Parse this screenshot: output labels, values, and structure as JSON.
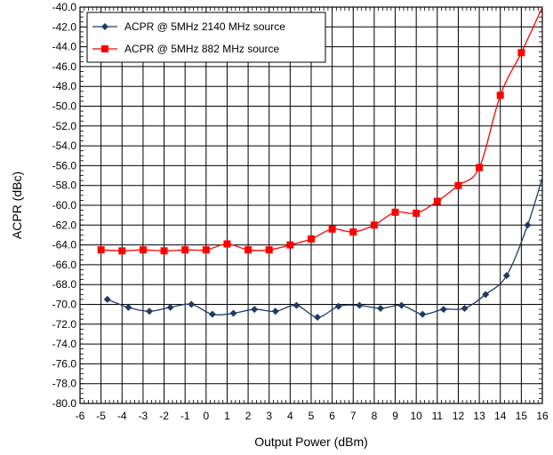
{
  "chart_data": {
    "type": "line",
    "title": "",
    "xlabel": "Output Power (dBm)",
    "ylabel": "ACPR (dBc)",
    "xlim": [
      -6,
      16
    ],
    "ylim": [
      -80,
      -40
    ],
    "x_ticks": [
      -6,
      -5,
      -4,
      -3,
      -2,
      -1,
      0,
      1,
      2,
      3,
      4,
      5,
      6,
      7,
      8,
      9,
      10,
      11,
      12,
      13,
      14,
      15,
      16
    ],
    "y_ticks": [
      -40.0,
      -42.0,
      -44.0,
      -46.0,
      -48.0,
      -50.0,
      -52.0,
      -54.0,
      -56.0,
      -58.0,
      -60.0,
      -62.0,
      -64.0,
      -66.0,
      -68.0,
      -70.0,
      -72.0,
      -74.0,
      -76.0,
      -78.0,
      -80.0
    ],
    "grid": true,
    "legend_position": "top-left",
    "series": [
      {
        "name": "ACPR @ 5MHz 2140 MHz source",
        "color": "#1f3a66",
        "marker": "diamond",
        "x": [
          -4.7,
          -3.7,
          -2.7,
          -1.7,
          -0.7,
          0.3,
          1.3,
          2.3,
          3.3,
          4.3,
          5.3,
          6.3,
          7.3,
          8.3,
          9.3,
          10.3,
          11.3,
          12.3,
          13.3,
          14.3,
          15.3
        ],
        "y": [
          -69.5,
          -70.3,
          -70.7,
          -70.3,
          -70.0,
          -71.0,
          -70.9,
          -70.5,
          -70.7,
          -70.1,
          -71.3,
          -70.2,
          -70.1,
          -70.4,
          -70.1,
          -71.0,
          -70.5,
          -70.4,
          -69.0,
          -67.1,
          -62.0
        ],
        "end": [
          16.0,
          -57.2
        ]
      },
      {
        "name": "ACPR @ 5MHz 882 MHz source",
        "color": "#ff0000",
        "marker": "square",
        "x": [
          -5.0,
          -4.0,
          -3.0,
          -2.0,
          -1.0,
          0.0,
          1.0,
          2.0,
          3.0,
          4.0,
          5.0,
          6.0,
          7.0,
          8.0,
          9.0,
          10.0,
          11.0,
          12.0,
          13.0,
          14.0,
          15.0
        ],
        "y": [
          -64.5,
          -64.6,
          -64.5,
          -64.6,
          -64.5,
          -64.5,
          -63.9,
          -64.5,
          -64.5,
          -64.0,
          -63.4,
          -62.4,
          -62.7,
          -62.0,
          -60.7,
          -60.8,
          -59.6,
          -58.0,
          -56.2,
          -48.9,
          -44.6
        ],
        "end": [
          16.0,
          -40.0
        ]
      }
    ]
  }
}
